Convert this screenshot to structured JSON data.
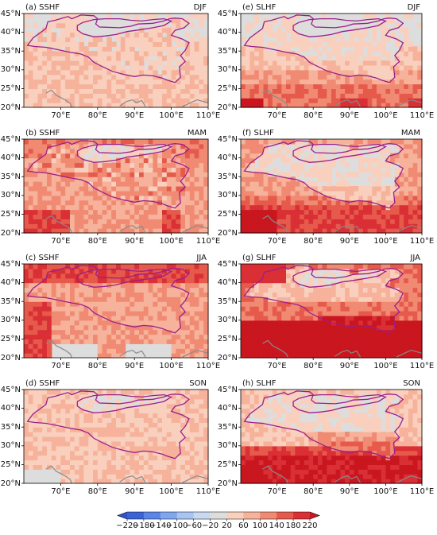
{
  "panels": [
    {
      "label": "(a) SSHF",
      "season": "DJF",
      "field": "sshf_djf"
    },
    {
      "label": "(e) SLHF",
      "season": "DJF",
      "field": "slhf_djf"
    },
    {
      "label": "(b) SSHF",
      "season": "MAM",
      "field": "sshf_mam"
    },
    {
      "label": "(f) SLHF",
      "season": "MAM",
      "field": "slhf_mam"
    },
    {
      "label": "(c) SSHF",
      "season": "JJA",
      "field": "sshf_jja"
    },
    {
      "label": "(g) SLHF",
      "season": "JJA",
      "field": "slhf_jja"
    },
    {
      "label": "(d) SSHF",
      "season": "SON",
      "field": "sshf_son"
    },
    {
      "label": "(h) SLHF",
      "season": "SON",
      "field": "slhf_son"
    }
  ],
  "axes": {
    "lon_ticks": [
      "70°E",
      "80°E",
      "90°E",
      "100°E",
      "110°E"
    ],
    "lat_ticks": [
      "45°N",
      "40°N",
      "35°N",
      "30°N",
      "25°N",
      "20°N"
    ]
  },
  "colorbar": {
    "labels": [
      "−220",
      "−180",
      "−140",
      "−100",
      "−60",
      "−20",
      "20",
      "60",
      "100",
      "140",
      "180",
      "220"
    ],
    "colors": [
      "#3b63d6",
      "#5a86e8",
      "#7fa7f0",
      "#a7c4f2",
      "#c9d9f0",
      "#dddddd",
      "#f9d0be",
      "#f6b29a",
      "#f08a73",
      "#e65a4c",
      "#d92f35"
    ],
    "under_color": "#2f52cc",
    "over_color": "#c9161f"
  },
  "styles": {
    "tp_outline_color": "#9b1f8a",
    "coast_color": "#8a8a8a",
    "axis_color": "#000000"
  },
  "fields": {
    "sshf_djf": "light",
    "slhf_djf": "light_south_red",
    "sshf_mam": "medium_mixed",
    "slhf_mam": "medium_south",
    "sshf_jja": "strong_west",
    "slhf_jja": "strong_south",
    "sshf_son": "light_mixed",
    "slhf_son": "medium_south_son"
  }
}
